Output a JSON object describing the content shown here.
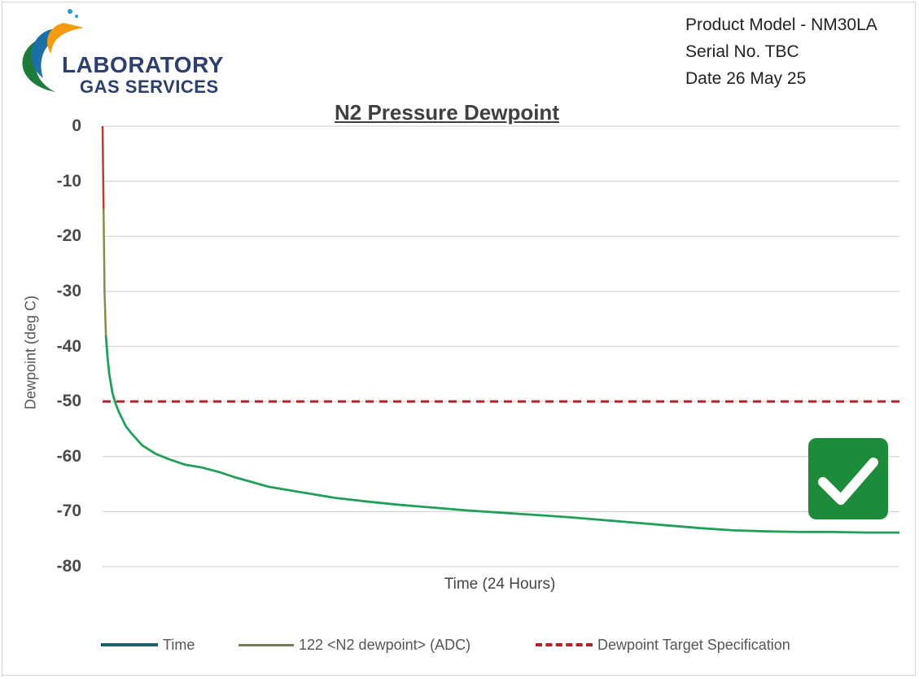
{
  "header": {
    "logo_line1": "LABORATORY",
    "logo_line2": "GAS SERVICES",
    "product_model": "Product Model - NM30LA",
    "serial_no": "Serial No.  TBC",
    "date": "Date 26 May 25"
  },
  "colors": {
    "series_main": "#22a059",
    "series_start": "#c0392b",
    "target": "#b0232a",
    "legend_time": "#1f5f6f",
    "legend_adc": "#7a7a5a",
    "check_bg": "#1e8b3a"
  },
  "chart_data": {
    "type": "line",
    "title": "N2 Pressure Dewpoint",
    "xlabel": "Time (24 Hours)",
    "ylabel": "Dewpoint (deg C)",
    "ylim": [
      -80,
      0
    ],
    "yticks": [
      "0",
      "-10",
      "-20",
      "-30",
      "-40",
      "-50",
      "-60",
      "-70",
      "-80"
    ],
    "grid": true,
    "legend_position": "bottom",
    "x_range": [
      0,
      24
    ],
    "series": [
      {
        "name": "122 <N2 dewpoint> (ADC)",
        "x": [
          0,
          0.03,
          0.06,
          0.1,
          0.15,
          0.2,
          0.3,
          0.4,
          0.5,
          0.7,
          0.9,
          1.2,
          1.6,
          2.0,
          2.5,
          3.0,
          3.5,
          4.0,
          5.0,
          6.0,
          7.0,
          8.0,
          9.0,
          10.0,
          11.0,
          12.0,
          13.0,
          14.0,
          15.0,
          16.0,
          17.0,
          18.0,
          19.0,
          20.0,
          21.0,
          22.0,
          23.0,
          24.0
        ],
        "values": [
          0,
          -15,
          -30,
          -38,
          -42,
          -45,
          -48.5,
          -50.5,
          -52,
          -54.5,
          -56,
          -58,
          -59.5,
          -60.5,
          -61.5,
          -62,
          -62.8,
          -63.8,
          -65.5,
          -66.5,
          -67.5,
          -68.2,
          -68.8,
          -69.3,
          -69.8,
          -70.2,
          -70.6,
          -71,
          -71.5,
          -72,
          -72.5,
          -73,
          -73.4,
          -73.6,
          -73.7,
          -73.7,
          -73.8,
          -73.8
        ]
      },
      {
        "name": "Dewpoint Target Specification",
        "x": [
          0,
          24
        ],
        "values": [
          -50,
          -50
        ],
        "style": "dashed"
      }
    ],
    "legend": [
      "Time",
      "122 <N2 dewpoint> (ADC)",
      "Dewpoint Target Specification"
    ]
  }
}
